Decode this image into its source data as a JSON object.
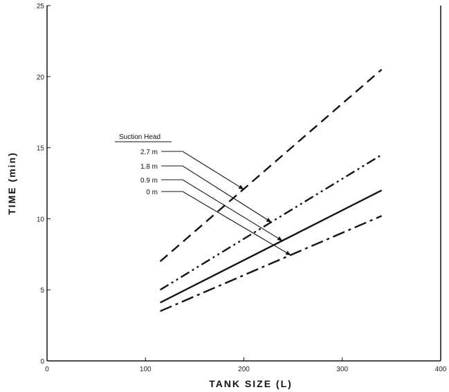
{
  "chart_data": {
    "type": "line",
    "title": "",
    "xlabel": "TANK SIZE (L)",
    "ylabel": "TIME (min)",
    "xlim": [
      0,
      400
    ],
    "ylim": [
      0,
      25
    ],
    "xticks": [
      0,
      100,
      200,
      300,
      400
    ],
    "yticks": [
      0,
      5,
      10,
      15,
      20,
      25
    ],
    "grid": false,
    "legend": {
      "title": "Suction Head",
      "placement": "center-left",
      "entries": [
        "2.7 m",
        "1.8 m",
        "0.9 m",
        "0 m"
      ]
    },
    "series": [
      {
        "name": "2.7 m",
        "style": "dashed",
        "x": [
          115,
          340
        ],
        "y": [
          7.0,
          20.5
        ]
      },
      {
        "name": "1.8 m",
        "style": "dash-dot-dot",
        "x": [
          115,
          340
        ],
        "y": [
          5.0,
          14.5
        ]
      },
      {
        "name": "0.9 m",
        "style": "solid",
        "x": [
          115,
          340
        ],
        "y": [
          4.1,
          12.0
        ]
      },
      {
        "name": "0 m",
        "style": "dash-dot",
        "x": [
          115,
          340
        ],
        "y": [
          3.5,
          10.2
        ]
      }
    ]
  }
}
